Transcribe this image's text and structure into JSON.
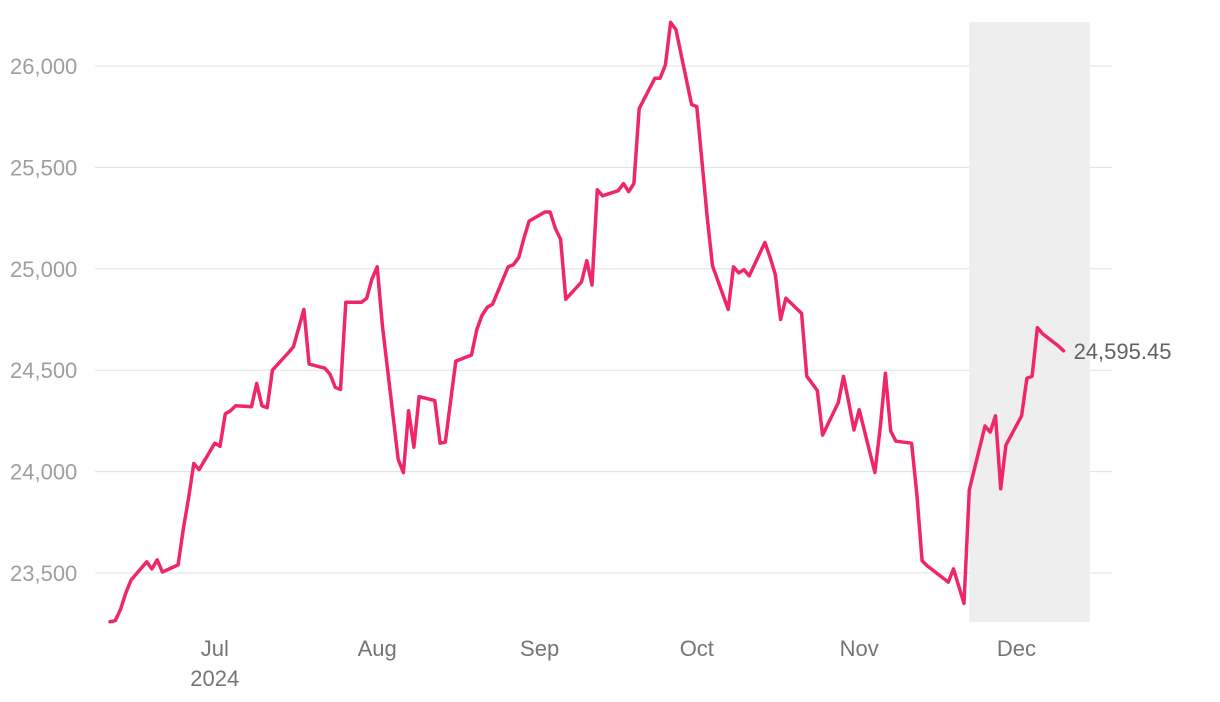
{
  "chart_data": {
    "type": "line",
    "xlabel": "",
    "ylabel": "",
    "grid": true,
    "legend": "none",
    "ylim": [
      23250,
      26220
    ],
    "y_ticks": [
      23500,
      24000,
      24500,
      25000,
      25500,
      26000
    ],
    "y_tick_labels": [
      "23,500",
      "24,000",
      "24,500",
      "25,000",
      "25,500",
      "26,000"
    ],
    "x_range": [
      "2024-06-11",
      "2024-12-16"
    ],
    "x_ticks": [
      {
        "date": "2024-07-01",
        "label": "Jul",
        "sublabel": "2024"
      },
      {
        "date": "2024-08-01",
        "label": "Aug",
        "sublabel": ""
      },
      {
        "date": "2024-09-01",
        "label": "Sep",
        "sublabel": ""
      },
      {
        "date": "2024-10-01",
        "label": "Oct",
        "sublabel": ""
      },
      {
        "date": "2024-11-01",
        "label": "Nov",
        "sublabel": ""
      },
      {
        "date": "2024-12-01",
        "label": "Dec",
        "sublabel": ""
      }
    ],
    "highlight_range": [
      "2024-11-22",
      "2024-12-15"
    ],
    "last_value_label": "24,595.45",
    "line_color": "#f0266a",
    "highlight_color": "#eeeeee",
    "series": [
      {
        "points": [
          [
            "2024-06-11",
            23260
          ],
          [
            "2024-06-12",
            23265
          ],
          [
            "2024-06-13",
            23320
          ],
          [
            "2024-06-14",
            23400
          ],
          [
            "2024-06-15",
            23465
          ],
          [
            "2024-06-18",
            23555
          ],
          [
            "2024-06-19",
            23520
          ],
          [
            "2024-06-20",
            23565
          ],
          [
            "2024-06-21",
            23505
          ],
          [
            "2024-06-24",
            23540
          ],
          [
            "2024-06-25",
            23720
          ],
          [
            "2024-06-26",
            23870
          ],
          [
            "2024-06-27",
            24040
          ],
          [
            "2024-06-28",
            24010
          ],
          [
            "2024-07-01",
            24140
          ],
          [
            "2024-07-02",
            24125
          ],
          [
            "2024-07-03",
            24285
          ],
          [
            "2024-07-04",
            24300
          ],
          [
            "2024-07-05",
            24325
          ],
          [
            "2024-07-08",
            24320
          ],
          [
            "2024-07-09",
            24435
          ],
          [
            "2024-07-10",
            24325
          ],
          [
            "2024-07-11",
            24315
          ],
          [
            "2024-07-12",
            24500
          ],
          [
            "2024-07-15",
            24585
          ],
          [
            "2024-07-16",
            24615
          ],
          [
            "2024-07-18",
            24800
          ],
          [
            "2024-07-19",
            24530
          ],
          [
            "2024-07-22",
            24510
          ],
          [
            "2024-07-23",
            24480
          ],
          [
            "2024-07-24",
            24415
          ],
          [
            "2024-07-25",
            24405
          ],
          [
            "2024-07-26",
            24835
          ],
          [
            "2024-07-29",
            24835
          ],
          [
            "2024-07-30",
            24855
          ],
          [
            "2024-07-31",
            24950
          ],
          [
            "2024-08-01",
            25010
          ],
          [
            "2024-08-02",
            24720
          ],
          [
            "2024-08-05",
            24060
          ],
          [
            "2024-08-06",
            23995
          ],
          [
            "2024-08-07",
            24300
          ],
          [
            "2024-08-08",
            24120
          ],
          [
            "2024-08-09",
            24370
          ],
          [
            "2024-08-12",
            24350
          ],
          [
            "2024-08-13",
            24140
          ],
          [
            "2024-08-14",
            24145
          ],
          [
            "2024-08-16",
            24545
          ],
          [
            "2024-08-19",
            24575
          ],
          [
            "2024-08-20",
            24700
          ],
          [
            "2024-08-21",
            24770
          ],
          [
            "2024-08-22",
            24810
          ],
          [
            "2024-08-23",
            24825
          ],
          [
            "2024-08-26",
            25010
          ],
          [
            "2024-08-27",
            25020
          ],
          [
            "2024-08-28",
            25055
          ],
          [
            "2024-08-29",
            25150
          ],
          [
            "2024-08-30",
            25235
          ],
          [
            "2024-09-02",
            25280
          ],
          [
            "2024-09-03",
            25280
          ],
          [
            "2024-09-04",
            25200
          ],
          [
            "2024-09-05",
            25145
          ],
          [
            "2024-09-06",
            24850
          ],
          [
            "2024-09-09",
            24935
          ],
          [
            "2024-09-10",
            25040
          ],
          [
            "2024-09-11",
            24920
          ],
          [
            "2024-09-12",
            25390
          ],
          [
            "2024-09-13",
            25360
          ],
          [
            "2024-09-16",
            25385
          ],
          [
            "2024-09-17",
            25420
          ],
          [
            "2024-09-18",
            25380
          ],
          [
            "2024-09-19",
            25420
          ],
          [
            "2024-09-20",
            25790
          ],
          [
            "2024-09-23",
            25940
          ],
          [
            "2024-09-24",
            25940
          ],
          [
            "2024-09-25",
            26005
          ],
          [
            "2024-09-26",
            26215
          ],
          [
            "2024-09-27",
            26180
          ],
          [
            "2024-09-30",
            25810
          ],
          [
            "2024-10-01",
            25800
          ],
          [
            "2024-10-03",
            25250
          ],
          [
            "2024-10-04",
            25015
          ],
          [
            "2024-10-07",
            24800
          ],
          [
            "2024-10-08",
            25010
          ],
          [
            "2024-10-09",
            24980
          ],
          [
            "2024-10-10",
            24995
          ],
          [
            "2024-10-11",
            24965
          ],
          [
            "2024-10-14",
            25130
          ],
          [
            "2024-10-15",
            25055
          ],
          [
            "2024-10-16",
            24970
          ],
          [
            "2024-10-17",
            24750
          ],
          [
            "2024-10-18",
            24855
          ],
          [
            "2024-10-21",
            24780
          ],
          [
            "2024-10-22",
            24470
          ],
          [
            "2024-10-23",
            24435
          ],
          [
            "2024-10-24",
            24400
          ],
          [
            "2024-10-25",
            24180
          ],
          [
            "2024-10-28",
            24340
          ],
          [
            "2024-10-29",
            24470
          ],
          [
            "2024-10-30",
            24340
          ],
          [
            "2024-10-31",
            24205
          ],
          [
            "2024-11-01",
            24305
          ],
          [
            "2024-11-04",
            23995
          ],
          [
            "2024-11-05",
            24215
          ],
          [
            "2024-11-06",
            24485
          ],
          [
            "2024-11-07",
            24200
          ],
          [
            "2024-11-08",
            24150
          ],
          [
            "2024-11-11",
            24140
          ],
          [
            "2024-11-12",
            23885
          ],
          [
            "2024-11-13",
            23560
          ],
          [
            "2024-11-14",
            23535
          ],
          [
            "2024-11-18",
            23455
          ],
          [
            "2024-11-19",
            23520
          ],
          [
            "2024-11-21",
            23350
          ],
          [
            "2024-11-22",
            23910
          ],
          [
            "2024-11-25",
            24225
          ],
          [
            "2024-11-26",
            24195
          ],
          [
            "2024-11-27",
            24275
          ],
          [
            "2024-11-28",
            23915
          ],
          [
            "2024-11-29",
            24130
          ],
          [
            "2024-12-02",
            24275
          ],
          [
            "2024-12-03",
            24460
          ],
          [
            "2024-12-04",
            24470
          ],
          [
            "2024-12-05",
            24710
          ],
          [
            "2024-12-06",
            24680
          ],
          [
            "2024-12-09",
            24620
          ],
          [
            "2024-12-10",
            24595.45
          ]
        ]
      }
    ]
  }
}
